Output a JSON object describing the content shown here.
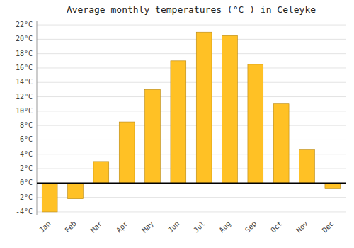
{
  "chart_data": {
    "type": "bar",
    "title": "Average monthly temperatures (°C ) in Celeyke",
    "categories": [
      "Jan",
      "Feb",
      "Mar",
      "Apr",
      "May",
      "Jun",
      "Jul",
      "Aug",
      "Sep",
      "Oct",
      "Nov",
      "Dec"
    ],
    "values": [
      -4.0,
      -2.2,
      3.0,
      8.5,
      13.0,
      17.0,
      21.0,
      20.5,
      16.5,
      11.0,
      4.7,
      -0.8
    ],
    "color": "#FFC125",
    "ylim": [
      -4.5,
      22.5
    ],
    "yticks": [
      {
        "value": -4,
        "label": "-4°C"
      },
      {
        "value": -2,
        "label": "-2°C"
      },
      {
        "value": 0,
        "label": "0°C"
      },
      {
        "value": 2,
        "label": "2°C"
      },
      {
        "value": 4,
        "label": "4°C"
      },
      {
        "value": 6,
        "label": "6°C"
      },
      {
        "value": 8,
        "label": "8°C"
      },
      {
        "value": 10,
        "label": "10°C"
      },
      {
        "value": 12,
        "label": "12°C"
      },
      {
        "value": 14,
        "label": "14°C"
      },
      {
        "value": 16,
        "label": "16°C"
      },
      {
        "value": 18,
        "label": "18°C"
      },
      {
        "value": 20,
        "label": "20°C"
      },
      {
        "value": 22,
        "label": "22°C"
      }
    ],
    "grid": true
  }
}
